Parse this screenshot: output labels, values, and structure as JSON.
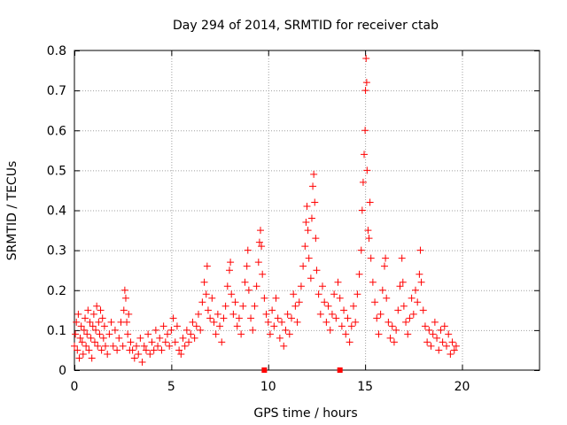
{
  "chart_data": {
    "type": "scatter",
    "title": "Day 294 of 2014, SRMTID for receiver ctab",
    "xlabel": "GPS time / hours",
    "ylabel": "SRMTID / TECUs",
    "xlim": [
      0,
      24
    ],
    "ylim": [
      0,
      0.8
    ],
    "xticks": [
      0,
      5,
      10,
      15,
      20
    ],
    "yticks": [
      0,
      0.1,
      0.2,
      0.3,
      0.4,
      0.5,
      0.6,
      0.7,
      0.8
    ],
    "xtick_labels": [
      "0",
      "5",
      "10",
      "15",
      "20"
    ],
    "ytick_labels": [
      "0",
      "0.1",
      "0.2",
      "0.3",
      "0.4",
      "0.5",
      "0.6",
      "0.7",
      "0.8"
    ],
    "grid": true,
    "marker": "+",
    "color": "#ff0000",
    "x_axis_markers": [
      9.8,
      13.7
    ],
    "series": [
      {
        "name": "ctab",
        "points": [
          [
            0.0,
            0.06
          ],
          [
            0.05,
            0.09
          ],
          [
            0.1,
            0.12
          ],
          [
            0.15,
            0.05
          ],
          [
            0.2,
            0.14
          ],
          [
            0.25,
            0.03
          ],
          [
            0.3,
            0.08
          ],
          [
            0.35,
            0.11
          ],
          [
            0.4,
            0.07
          ],
          [
            0.45,
            0.04
          ],
          [
            0.5,
            0.1
          ],
          [
            0.55,
            0.13
          ],
          [
            0.6,
            0.06
          ],
          [
            0.65,
            0.09
          ],
          [
            0.7,
            0.15
          ],
          [
            0.75,
            0.05
          ],
          [
            0.8,
            0.12
          ],
          [
            0.85,
            0.08
          ],
          [
            0.9,
            0.03
          ],
          [
            0.95,
            0.11
          ],
          [
            1.0,
            0.14
          ],
          [
            1.05,
            0.07
          ],
          [
            1.1,
            0.1
          ],
          [
            1.15,
            0.16
          ],
          [
            1.2,
            0.06
          ],
          [
            1.25,
            0.12
          ],
          [
            1.3,
            0.09
          ],
          [
            1.35,
            0.15
          ],
          [
            1.4,
            0.05
          ],
          [
            1.45,
            0.13
          ],
          [
            1.5,
            0.08
          ],
          [
            1.55,
            0.11
          ],
          [
            1.6,
            0.06
          ],
          [
            1.7,
            0.04
          ],
          [
            1.8,
            0.09
          ],
          [
            1.9,
            0.12
          ],
          [
            2.0,
            0.06
          ],
          [
            2.1,
            0.1
          ],
          [
            2.2,
            0.05
          ],
          [
            2.3,
            0.08
          ],
          [
            2.4,
            0.12
          ],
          [
            2.5,
            0.06
          ],
          [
            2.55,
            0.15
          ],
          [
            2.6,
            0.2
          ],
          [
            2.65,
            0.18
          ],
          [
            2.7,
            0.12
          ],
          [
            2.75,
            0.09
          ],
          [
            2.8,
            0.14
          ],
          [
            2.85,
            0.05
          ],
          [
            2.9,
            0.07
          ],
          [
            3.0,
            0.05
          ],
          [
            3.1,
            0.03
          ],
          [
            3.2,
            0.06
          ],
          [
            3.3,
            0.04
          ],
          [
            3.4,
            0.08
          ],
          [
            3.5,
            0.02
          ],
          [
            3.6,
            0.06
          ],
          [
            3.7,
            0.05
          ],
          [
            3.8,
            0.09
          ],
          [
            3.9,
            0.04
          ],
          [
            4.0,
            0.07
          ],
          [
            4.1,
            0.05
          ],
          [
            4.2,
            0.1
          ],
          [
            4.3,
            0.06
          ],
          [
            4.4,
            0.08
          ],
          [
            4.5,
            0.05
          ],
          [
            4.6,
            0.11
          ],
          [
            4.7,
            0.07
          ],
          [
            4.8,
            0.09
          ],
          [
            4.9,
            0.06
          ],
          [
            5.0,
            0.1
          ],
          [
            5.1,
            0.13
          ],
          [
            5.2,
            0.07
          ],
          [
            5.3,
            0.11
          ],
          [
            5.4,
            0.05
          ],
          [
            5.5,
            0.04
          ],
          [
            5.6,
            0.08
          ],
          [
            5.7,
            0.06
          ],
          [
            5.8,
            0.1
          ],
          [
            5.9,
            0.07
          ],
          [
            6.0,
            0.09
          ],
          [
            6.1,
            0.12
          ],
          [
            6.2,
            0.08
          ],
          [
            6.3,
            0.11
          ],
          [
            6.4,
            0.14
          ],
          [
            6.5,
            0.1
          ],
          [
            6.6,
            0.17
          ],
          [
            6.7,
            0.22
          ],
          [
            6.8,
            0.19
          ],
          [
            6.85,
            0.26
          ],
          [
            6.9,
            0.15
          ],
          [
            7.0,
            0.13
          ],
          [
            7.1,
            0.18
          ],
          [
            7.2,
            0.12
          ],
          [
            7.3,
            0.09
          ],
          [
            7.4,
            0.14
          ],
          [
            7.5,
            0.11
          ],
          [
            7.6,
            0.07
          ],
          [
            7.7,
            0.13
          ],
          [
            7.8,
            0.16
          ],
          [
            7.9,
            0.21
          ],
          [
            8.0,
            0.25
          ],
          [
            8.05,
            0.27
          ],
          [
            8.1,
            0.19
          ],
          [
            8.2,
            0.14
          ],
          [
            8.3,
            0.17
          ],
          [
            8.4,
            0.11
          ],
          [
            8.5,
            0.13
          ],
          [
            8.6,
            0.09
          ],
          [
            8.7,
            0.16
          ],
          [
            8.8,
            0.22
          ],
          [
            8.9,
            0.26
          ],
          [
            8.95,
            0.3
          ],
          [
            9.0,
            0.2
          ],
          [
            9.1,
            0.13
          ],
          [
            9.2,
            0.1
          ],
          [
            9.3,
            0.16
          ],
          [
            9.4,
            0.21
          ],
          [
            9.5,
            0.27
          ],
          [
            9.55,
            0.32
          ],
          [
            9.6,
            0.35
          ],
          [
            9.65,
            0.31
          ],
          [
            9.7,
            0.24
          ],
          [
            9.8,
            0.18
          ],
          [
            9.9,
            0.14
          ],
          [
            10.0,
            0.12
          ],
          [
            10.1,
            0.09
          ],
          [
            10.2,
            0.15
          ],
          [
            10.3,
            0.11
          ],
          [
            10.4,
            0.18
          ],
          [
            10.5,
            0.13
          ],
          [
            10.6,
            0.08
          ],
          [
            10.7,
            0.12
          ],
          [
            10.8,
            0.06
          ],
          [
            10.9,
            0.1
          ],
          [
            11.0,
            0.14
          ],
          [
            11.1,
            0.09
          ],
          [
            11.2,
            0.13
          ],
          [
            11.3,
            0.19
          ],
          [
            11.4,
            0.16
          ],
          [
            11.5,
            0.12
          ],
          [
            11.6,
            0.17
          ],
          [
            11.7,
            0.21
          ],
          [
            11.8,
            0.26
          ],
          [
            11.9,
            0.31
          ],
          [
            11.95,
            0.37
          ],
          [
            12.0,
            0.41
          ],
          [
            12.05,
            0.35
          ],
          [
            12.1,
            0.28
          ],
          [
            12.2,
            0.23
          ],
          [
            12.25,
            0.38
          ],
          [
            12.3,
            0.46
          ],
          [
            12.35,
            0.49
          ],
          [
            12.4,
            0.42
          ],
          [
            12.45,
            0.33
          ],
          [
            12.5,
            0.25
          ],
          [
            12.6,
            0.19
          ],
          [
            12.7,
            0.14
          ],
          [
            12.8,
            0.21
          ],
          [
            12.9,
            0.17
          ],
          [
            13.0,
            0.12
          ],
          [
            13.1,
            0.16
          ],
          [
            13.2,
            0.1
          ],
          [
            13.3,
            0.14
          ],
          [
            13.4,
            0.19
          ],
          [
            13.5,
            0.13
          ],
          [
            13.6,
            0.22
          ],
          [
            13.7,
            0.18
          ],
          [
            13.8,
            0.11
          ],
          [
            13.9,
            0.15
          ],
          [
            14.0,
            0.09
          ],
          [
            14.1,
            0.13
          ],
          [
            14.2,
            0.07
          ],
          [
            14.3,
            0.11
          ],
          [
            14.4,
            0.16
          ],
          [
            14.5,
            0.12
          ],
          [
            14.6,
            0.19
          ],
          [
            14.7,
            0.24
          ],
          [
            14.8,
            0.3
          ],
          [
            14.85,
            0.4
          ],
          [
            14.9,
            0.47
          ],
          [
            14.95,
            0.54
          ],
          [
            15.0,
            0.6
          ],
          [
            15.02,
            0.7
          ],
          [
            15.05,
            0.78
          ],
          [
            15.08,
            0.72
          ],
          [
            15.1,
            0.5
          ],
          [
            15.15,
            0.35
          ],
          [
            15.2,
            0.33
          ],
          [
            15.25,
            0.42
          ],
          [
            15.3,
            0.28
          ],
          [
            15.4,
            0.22
          ],
          [
            15.5,
            0.17
          ],
          [
            15.6,
            0.13
          ],
          [
            15.7,
            0.09
          ],
          [
            15.8,
            0.14
          ],
          [
            15.9,
            0.2
          ],
          [
            16.0,
            0.26
          ],
          [
            16.05,
            0.28
          ],
          [
            16.1,
            0.18
          ],
          [
            16.2,
            0.12
          ],
          [
            16.3,
            0.08
          ],
          [
            16.4,
            0.11
          ],
          [
            16.5,
            0.07
          ],
          [
            16.6,
            0.1
          ],
          [
            16.7,
            0.15
          ],
          [
            16.8,
            0.21
          ],
          [
            16.9,
            0.28
          ],
          [
            16.95,
            0.22
          ],
          [
            17.0,
            0.16
          ],
          [
            17.1,
            0.12
          ],
          [
            17.2,
            0.09
          ],
          [
            17.3,
            0.13
          ],
          [
            17.4,
            0.18
          ],
          [
            17.5,
            0.14
          ],
          [
            17.6,
            0.2
          ],
          [
            17.7,
            0.17
          ],
          [
            17.8,
            0.24
          ],
          [
            17.85,
            0.3
          ],
          [
            17.9,
            0.22
          ],
          [
            18.0,
            0.15
          ],
          [
            18.1,
            0.11
          ],
          [
            18.2,
            0.07
          ],
          [
            18.3,
            0.1
          ],
          [
            18.4,
            0.06
          ],
          [
            18.5,
            0.09
          ],
          [
            18.6,
            0.12
          ],
          [
            18.7,
            0.08
          ],
          [
            18.8,
            0.05
          ],
          [
            18.9,
            0.1
          ],
          [
            19.0,
            0.07
          ],
          [
            19.1,
            0.11
          ],
          [
            19.2,
            0.06
          ],
          [
            19.3,
            0.09
          ],
          [
            19.4,
            0.04
          ],
          [
            19.5,
            0.07
          ],
          [
            19.6,
            0.05
          ],
          [
            19.7,
            0.06
          ]
        ]
      }
    ]
  }
}
